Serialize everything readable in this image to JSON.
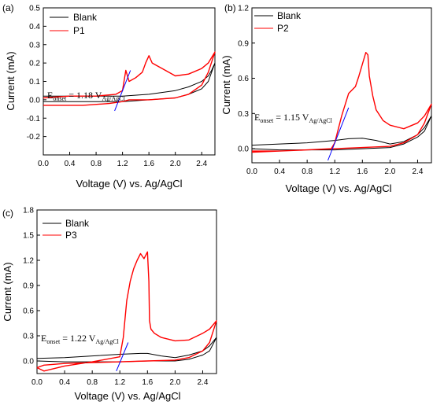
{
  "panels": [
    {
      "panel_label": "(a)",
      "onset_prefix": "E",
      "onset_sub": "onset",
      "onset_value": " = 1.18 V",
      "onset_ref": "Ag/AgCl",
      "colors": {
        "Blank": "#000000",
        "P1": "#ff0000",
        "tangent": "#0000ff"
      }
    },
    {
      "panel_label": "(b)",
      "onset_prefix": "E",
      "onset_sub": "onset",
      "onset_value": " = 1.15 V",
      "onset_ref": "Ag/AgCl",
      "colors": {
        "Blank": "#000000",
        "P2": "#ff0000",
        "tangent": "#0000ff"
      }
    },
    {
      "panel_label": "(c)",
      "onset_prefix": "E",
      "onset_sub": "onset",
      "onset_value": " = 1.22 V",
      "onset_ref": "Ag/AgCl",
      "colors": {
        "Blank": "#000000",
        "P3": "#ff0000",
        "tangent": "#0000ff"
      }
    }
  ],
  "chart_data": [
    {
      "type": "line",
      "xlabel": "Voltage (V) vs. Ag/AgCl",
      "ylabel": "Current (mA)",
      "xlim": [
        0.0,
        2.6
      ],
      "ylim": [
        -0.3,
        0.5
      ],
      "xticks": [
        "0.0",
        "0.4",
        "0.8",
        "1.2",
        "1.6",
        "2.0",
        "2.4"
      ],
      "yticks": [
        "-0.2",
        "-0.1",
        "0.0",
        "0.1",
        "0.2",
        "0.3",
        "0.4",
        "0.5"
      ],
      "grid": false,
      "legend": "top-left",
      "series": [
        {
          "name": "Blank",
          "x": [
            0.0,
            0.4,
            0.8,
            1.2,
            1.6,
            2.0,
            2.2,
            2.4,
            2.5,
            2.55,
            2.6,
            2.6,
            2.5,
            2.4,
            2.2,
            2.0,
            1.6,
            1.2,
            0.8,
            0.4,
            0.0
          ],
          "y": [
            0.02,
            0.02,
            0.02,
            0.02,
            0.03,
            0.05,
            0.07,
            0.1,
            0.13,
            0.16,
            0.2,
            0.2,
            0.1,
            0.06,
            0.03,
            0.01,
            0.0,
            -0.01,
            -0.01,
            -0.01,
            -0.01
          ]
        },
        {
          "name": "P1",
          "x": [
            0.0,
            0.4,
            0.8,
            1.1,
            1.2,
            1.25,
            1.3,
            1.4,
            1.5,
            1.55,
            1.6,
            1.65,
            1.7,
            1.8,
            2.0,
            2.2,
            2.4,
            2.5,
            2.6,
            2.6,
            2.5,
            2.4,
            2.2,
            2.0,
            1.6,
            1.3,
            1.2,
            1.0,
            0.6,
            0.3,
            0.1,
            0.0
          ],
          "y": [
            0.01,
            0.02,
            0.02,
            0.03,
            0.05,
            0.16,
            0.1,
            0.12,
            0.15,
            0.2,
            0.24,
            0.2,
            0.19,
            0.17,
            0.13,
            0.14,
            0.17,
            0.2,
            0.26,
            0.26,
            0.15,
            0.08,
            0.03,
            0.01,
            0.0,
            0.0,
            -0.01,
            -0.02,
            -0.03,
            -0.03,
            -0.03,
            -0.03
          ]
        },
        {
          "name": "Onset tangent",
          "x": [
            1.08,
            1.32
          ],
          "y": [
            -0.06,
            0.16
          ]
        }
      ]
    },
    {
      "type": "line",
      "xlabel": "Voltage (V) vs. Ag/AgCl",
      "ylabel": "Current (mA)",
      "xlim": [
        0.0,
        2.6
      ],
      "ylim": [
        -0.12,
        1.2
      ],
      "xticks": [
        "0.0",
        "0.4",
        "0.8",
        "1.2",
        "1.6",
        "2.0",
        "2.4"
      ],
      "yticks": [
        "0.0",
        "0.3",
        "0.6",
        "0.9",
        "1.2"
      ],
      "grid": false,
      "legend": "top-right",
      "series": [
        {
          "name": "Blank",
          "x": [
            0.0,
            0.4,
            0.8,
            1.2,
            1.4,
            1.6,
            1.8,
            2.0,
            2.2,
            2.4,
            2.5,
            2.6,
            2.6,
            2.5,
            2.4,
            2.2,
            2.0,
            1.6,
            1.2,
            0.8,
            0.4,
            0.0
          ],
          "y": [
            0.03,
            0.04,
            0.05,
            0.07,
            0.085,
            0.09,
            0.07,
            0.04,
            0.06,
            0.12,
            0.18,
            0.28,
            0.28,
            0.15,
            0.1,
            0.04,
            0.01,
            0.0,
            -0.01,
            -0.01,
            -0.01,
            0.0
          ]
        },
        {
          "name": "P2",
          "x": [
            0.0,
            0.4,
            0.8,
            1.15,
            1.2,
            1.3,
            1.4,
            1.5,
            1.55,
            1.6,
            1.65,
            1.68,
            1.7,
            1.75,
            1.8,
            1.9,
            2.0,
            2.2,
            2.4,
            2.5,
            2.6,
            2.6,
            2.5,
            2.4,
            2.2,
            2.0,
            1.6,
            1.2,
            0.8,
            0.4,
            0.0
          ],
          "y": [
            -0.02,
            -0.02,
            -0.01,
            0.0,
            0.05,
            0.28,
            0.47,
            0.53,
            0.62,
            0.72,
            0.82,
            0.8,
            0.62,
            0.45,
            0.33,
            0.24,
            0.2,
            0.17,
            0.22,
            0.28,
            0.38,
            0.38,
            0.22,
            0.12,
            0.05,
            0.02,
            0.01,
            0.0,
            -0.01,
            -0.02,
            -0.03
          ]
        },
        {
          "name": "Onset tangent",
          "x": [
            1.1,
            1.4
          ],
          "y": [
            -0.1,
            0.35
          ]
        }
      ]
    },
    {
      "type": "line",
      "xlabel": "Voltage (V) vs. Ag/AgCl",
      "ylabel": "Current (mA)",
      "xlim": [
        0.0,
        2.6
      ],
      "ylim": [
        -0.15,
        1.8
      ],
      "xticks": [
        "0.0",
        "0.4",
        "0.8",
        "1.2",
        "1.6",
        "2.0",
        "2.4"
      ],
      "yticks": [
        "0.0",
        "0.3",
        "0.6",
        "0.9",
        "1.2",
        "1.5",
        "1.8"
      ],
      "grid": false,
      "legend": "top-left",
      "series": [
        {
          "name": "Blank",
          "x": [
            0.0,
            0.4,
            0.8,
            1.2,
            1.5,
            1.6,
            1.8,
            2.0,
            2.2,
            2.4,
            2.5,
            2.6,
            2.6,
            2.5,
            2.4,
            2.2,
            2.0,
            1.6,
            1.2,
            0.8,
            0.4,
            0.0
          ],
          "y": [
            0.03,
            0.04,
            0.06,
            0.08,
            0.09,
            0.09,
            0.06,
            0.04,
            0.07,
            0.12,
            0.18,
            0.28,
            0.28,
            0.12,
            0.07,
            0.02,
            0.0,
            0.0,
            -0.01,
            -0.01,
            -0.01,
            0.0
          ]
        },
        {
          "name": "P3",
          "x": [
            0.0,
            0.1,
            0.2,
            0.4,
            0.8,
            1.2,
            1.25,
            1.3,
            1.35,
            1.4,
            1.45,
            1.5,
            1.55,
            1.6,
            1.62,
            1.63,
            1.65,
            1.7,
            1.8,
            2.0,
            2.2,
            2.4,
            2.5,
            2.6,
            2.6,
            2.5,
            2.4,
            2.2,
            2.0,
            1.6,
            1.2,
            0.8,
            0.4,
            0.1,
            0.0
          ],
          "y": [
            -0.08,
            -0.12,
            -0.1,
            -0.06,
            -0.01,
            0.05,
            0.28,
            0.72,
            0.95,
            1.1,
            1.2,
            1.28,
            1.22,
            1.3,
            0.95,
            0.48,
            0.38,
            0.33,
            0.28,
            0.24,
            0.25,
            0.33,
            0.38,
            0.48,
            0.48,
            0.22,
            0.12,
            0.04,
            0.01,
            0.0,
            -0.01,
            -0.02,
            -0.03,
            -0.05,
            -0.08
          ]
        },
        {
          "name": "Onset tangent",
          "x": [
            1.15,
            1.32
          ],
          "y": [
            -0.12,
            0.22
          ]
        }
      ]
    }
  ]
}
